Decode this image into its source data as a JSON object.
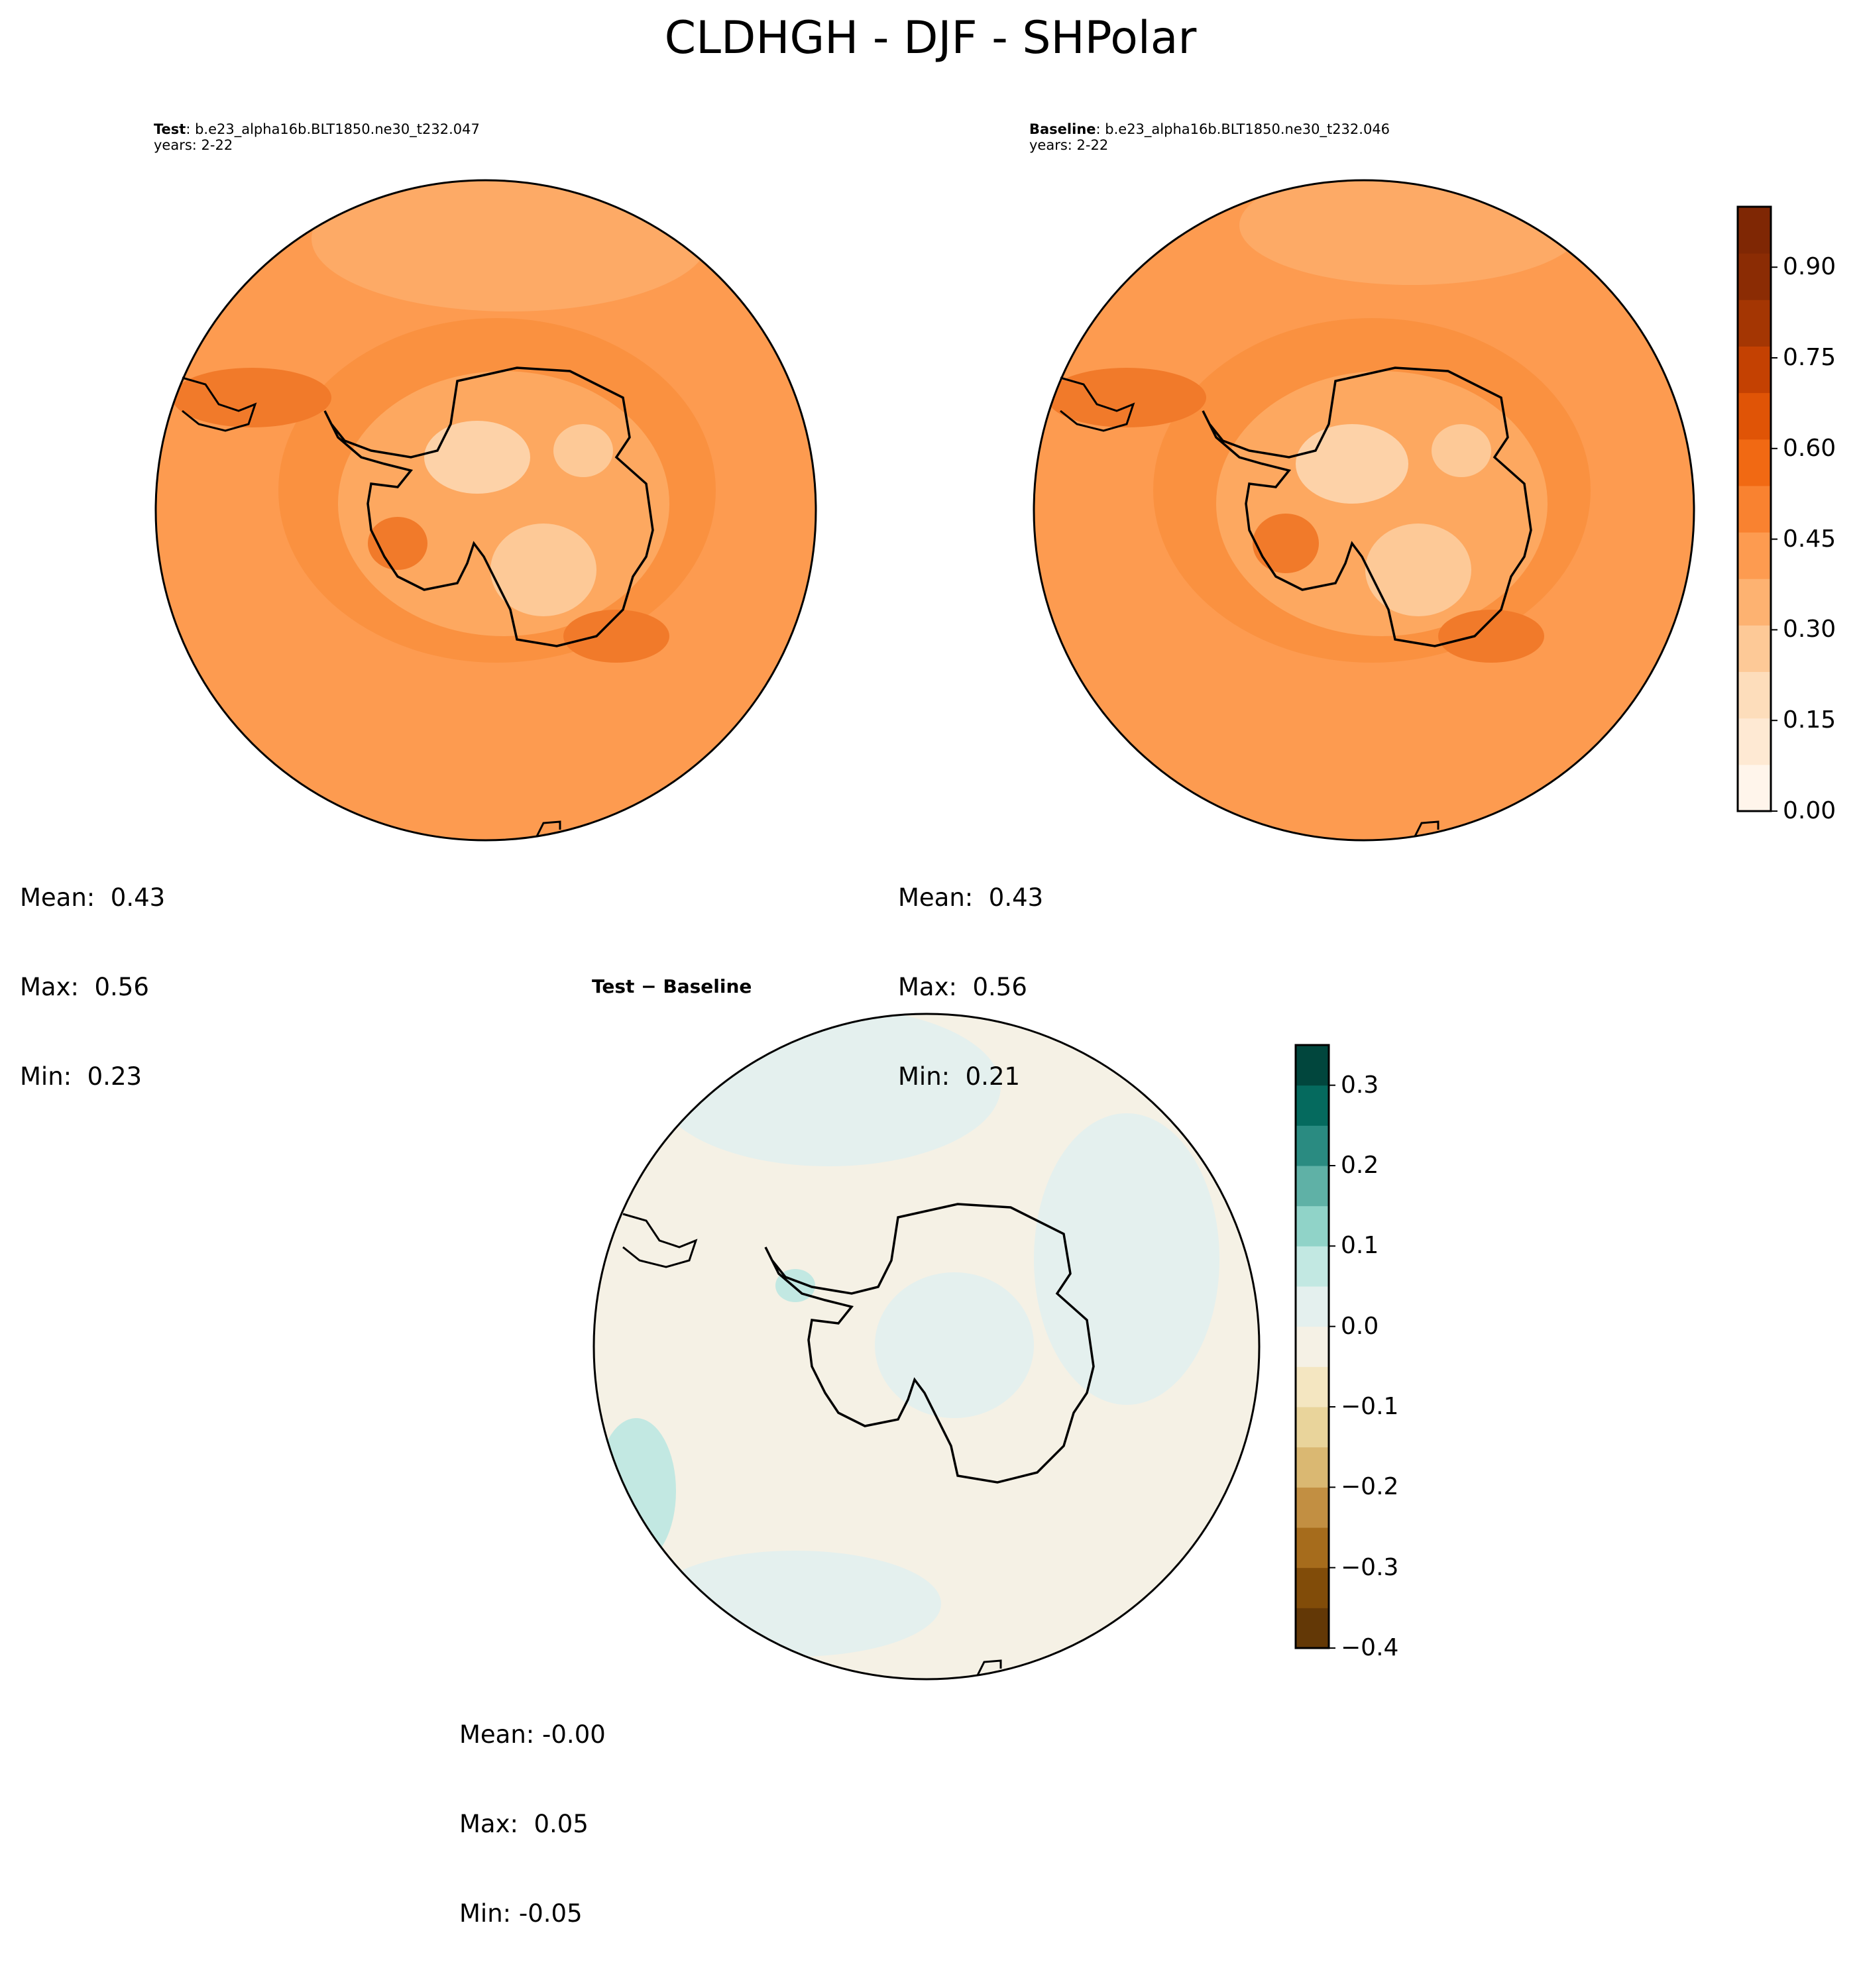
{
  "title": "CLDHGH - DJF - SHPolar",
  "panels": {
    "test": {
      "label_bold": "Test",
      "label_rest": ": b.e23_alpha16b.BLT1850.ne30_t232.047",
      "years": "years: 2-22",
      "mean": "Mean:  0.43",
      "max": "Max:  0.56",
      "min": "Min:  0.23"
    },
    "baseline": {
      "label_bold": "Baseline",
      "label_rest": ": b.e23_alpha16b.BLT1850.ne30_t232.046",
      "years": "years: 2-22",
      "mean": "Mean:  0.43",
      "max": "Max:  0.56",
      "min": "Min:  0.21"
    },
    "diff": {
      "title": "Test − Baseline",
      "mean": "Mean: -0.00",
      "max": "Max:  0.05",
      "min": "Min: -0.05"
    }
  },
  "colorbar_main": {
    "ticks": [
      "0.90",
      "0.75",
      "0.60",
      "0.45",
      "0.30",
      "0.15",
      "0.00"
    ],
    "colors": [
      "#fff5eb",
      "#fee9d3",
      "#fdddbb",
      "#fdc997",
      "#fdb271",
      "#fd9b50",
      "#f98230",
      "#f16913",
      "#e05406",
      "#c44102",
      "#a43603",
      "#8b2c04",
      "#7f2704"
    ]
  },
  "colorbar_diff": {
    "ticks": [
      "0.3",
      "0.2",
      "0.1",
      "0.0",
      "−0.1",
      "−0.2",
      "−0.3",
      "−0.4"
    ],
    "colors": [
      "#633806",
      "#814c09",
      "#a66c1c",
      "#c28f42",
      "#dab872",
      "#e9d49b",
      "#f4e6c1",
      "#f5f1e5",
      "#e4f0ee",
      "#c2e8e2",
      "#90d3c8",
      "#5fb1a6",
      "#2a8b81",
      "#056a5e",
      "#01463d"
    ]
  },
  "maps": {
    "test_fill": "#fd9b50",
    "baseline_fill": "#fd9b50",
    "diff_fill": "#f5f1e5",
    "diff_secondary": "#e4f0ee"
  }
}
